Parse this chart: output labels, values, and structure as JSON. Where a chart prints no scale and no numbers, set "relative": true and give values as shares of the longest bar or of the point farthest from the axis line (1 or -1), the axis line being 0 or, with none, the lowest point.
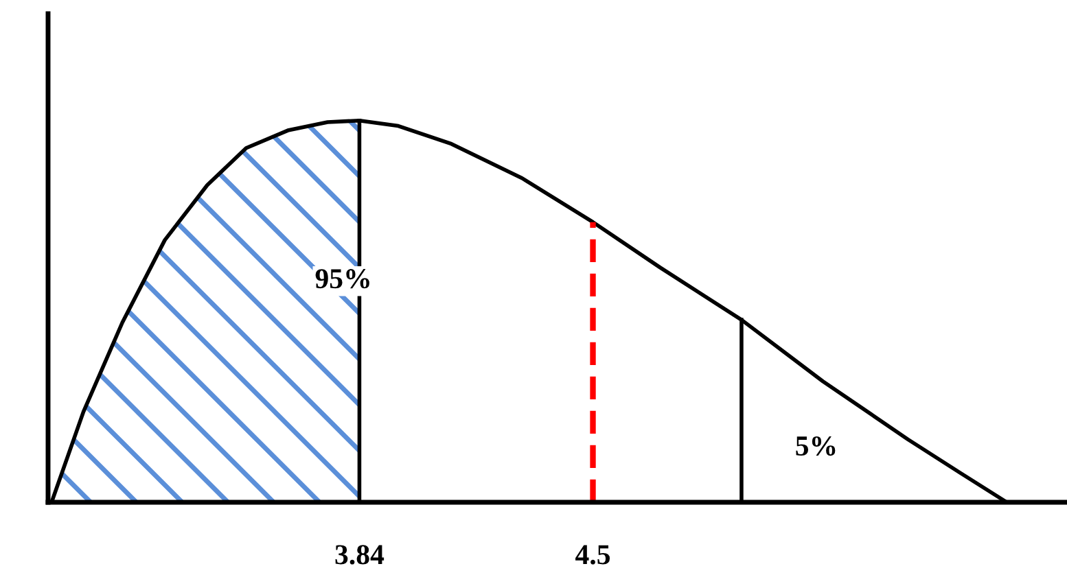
{
  "chart_data": {
    "type": "line",
    "relative": true,
    "tick_labels": "x",
    "grid": false,
    "legend": false,
    "marker": "none",
    "line_style": "solid",
    "x": [
      2.97,
      3.06,
      3.17,
      3.29,
      3.41,
      3.52,
      3.64,
      3.75,
      3.84,
      3.95,
      4.1,
      4.3,
      4.5,
      4.69,
      4.92,
      5.15,
      5.39,
      5.54,
      5.67
    ],
    "series": [
      {
        "color": "#000000",
        "values": [
          0,
          0.237,
          0.471,
          0.687,
          0.831,
          0.928,
          0.975,
          0.996,
          1,
          0.986,
          0.939,
          0.849,
          0.734,
          0.615,
          0.478,
          0.317,
          0.165,
          0.076,
          0
        ]
      }
    ],
    "xlim": [
      2.96,
      5.84
    ],
    "xticks": [
      3.84,
      4.5
    ],
    "ref_lines": [
      {
        "axis": "x",
        "value": 3.84,
        "color": "#000000",
        "line_style": "solid"
      },
      {
        "axis": "x",
        "value": 4.5,
        "color": "#ff0000",
        "line_style": "dashed"
      },
      {
        "axis": "x",
        "value": 4.92,
        "color": "#000000",
        "line_style": "solid"
      }
    ],
    "bands": [
      {
        "axis": "x",
        "from": 2.97,
        "to": 3.84,
        "color": "#5b8fd9"
      }
    ],
    "annotations": [
      "95%",
      "5%"
    ]
  }
}
